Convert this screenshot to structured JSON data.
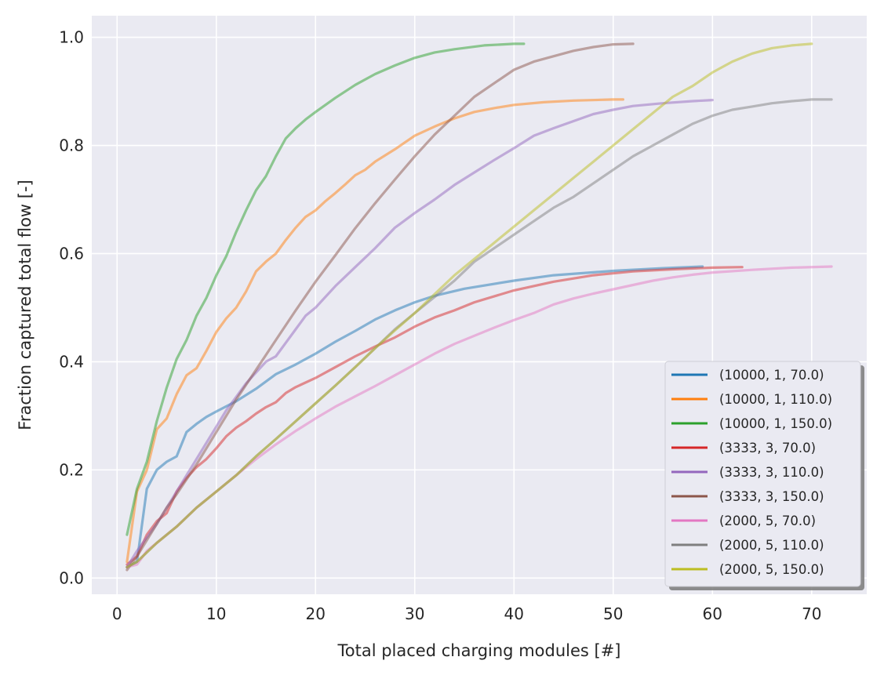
{
  "chart_data": {
    "type": "line",
    "title": "",
    "xlabel": "Total placed charging modules [#]",
    "ylabel": "Fraction captured total flow [-]",
    "xlim": [
      -2.55,
      75.55
    ],
    "ylim": [
      -0.03,
      1.04
    ],
    "xticks": [
      0,
      10,
      20,
      30,
      40,
      50,
      60,
      70
    ],
    "yticks": [
      0.0,
      0.2,
      0.4,
      0.6,
      0.8,
      1.0
    ],
    "grid": true,
    "legend_position": "lower-right",
    "series": [
      {
        "name": "(10000, 1, 70.0)",
        "color": "#1f77b4",
        "x": [
          1,
          2,
          3,
          4,
          5,
          6,
          7,
          8,
          9,
          10,
          12,
          14,
          16,
          18,
          20,
          22,
          24,
          26,
          28,
          30,
          32,
          35,
          40,
          44,
          50,
          55,
          59
        ],
        "y": [
          0.02,
          0.03,
          0.165,
          0.2,
          0.215,
          0.225,
          0.27,
          0.285,
          0.298,
          0.308,
          0.327,
          0.35,
          0.377,
          0.395,
          0.415,
          0.437,
          0.457,
          0.478,
          0.495,
          0.51,
          0.522,
          0.535,
          0.55,
          0.56,
          0.568,
          0.573,
          0.576
        ]
      },
      {
        "name": "(10000, 1, 110.0)",
        "color": "#ff7f0e",
        "x": [
          1,
          2,
          3,
          4,
          5,
          6,
          7,
          8,
          9,
          10,
          11,
          12,
          13,
          14,
          15,
          16,
          17,
          18,
          19,
          20,
          21,
          22,
          23,
          24,
          25,
          26,
          28,
          30,
          32,
          34,
          36,
          38,
          40,
          43,
          46,
          50,
          51
        ],
        "y": [
          0.03,
          0.16,
          0.2,
          0.275,
          0.295,
          0.34,
          0.375,
          0.388,
          0.42,
          0.455,
          0.48,
          0.5,
          0.53,
          0.567,
          0.585,
          0.6,
          0.625,
          0.648,
          0.668,
          0.68,
          0.697,
          0.712,
          0.728,
          0.745,
          0.755,
          0.77,
          0.793,
          0.818,
          0.835,
          0.85,
          0.862,
          0.869,
          0.875,
          0.88,
          0.883,
          0.885,
          0.885
        ]
      },
      {
        "name": "(10000, 1, 150.0)",
        "color": "#2ca02c",
        "x": [
          1,
          2,
          3,
          4,
          5,
          6,
          7,
          8,
          9,
          10,
          11,
          12,
          13,
          14,
          15,
          16,
          17,
          18,
          19,
          20,
          22,
          24,
          26,
          28,
          30,
          32,
          34,
          37,
          40,
          41
        ],
        "y": [
          0.08,
          0.165,
          0.215,
          0.29,
          0.352,
          0.405,
          0.44,
          0.485,
          0.518,
          0.56,
          0.595,
          0.64,
          0.68,
          0.717,
          0.743,
          0.78,
          0.813,
          0.832,
          0.848,
          0.862,
          0.888,
          0.912,
          0.932,
          0.948,
          0.962,
          0.972,
          0.978,
          0.985,
          0.988,
          0.988
        ]
      },
      {
        "name": "(3333, 3, 70.0)",
        "color": "#d62728",
        "x": [
          1,
          2,
          3,
          4,
          5,
          6,
          7,
          8,
          9,
          10,
          11,
          12,
          13,
          14,
          15,
          16,
          17,
          18,
          20,
          22,
          24,
          26,
          28,
          30,
          32,
          34,
          36,
          40,
          44,
          48,
          52,
          56,
          60,
          63
        ],
        "y": [
          0.025,
          0.04,
          0.08,
          0.105,
          0.12,
          0.16,
          0.185,
          0.205,
          0.22,
          0.24,
          0.262,
          0.278,
          0.29,
          0.304,
          0.316,
          0.325,
          0.342,
          0.353,
          0.37,
          0.39,
          0.41,
          0.428,
          0.445,
          0.465,
          0.482,
          0.495,
          0.51,
          0.532,
          0.548,
          0.56,
          0.567,
          0.571,
          0.574,
          0.575
        ]
      },
      {
        "name": "(3333, 3, 110.0)",
        "color": "#9467bd",
        "x": [
          1,
          2,
          3,
          4,
          5,
          6,
          7,
          8,
          9,
          10,
          11,
          12,
          13,
          14,
          15,
          16,
          17,
          18,
          19,
          20,
          22,
          24,
          26,
          28,
          30,
          32,
          34,
          36,
          38,
          40,
          42,
          44,
          46,
          48,
          50,
          52,
          55,
          58,
          60
        ],
        "y": [
          0.02,
          0.05,
          0.075,
          0.1,
          0.13,
          0.16,
          0.19,
          0.22,
          0.25,
          0.28,
          0.31,
          0.335,
          0.36,
          0.38,
          0.4,
          0.41,
          0.435,
          0.46,
          0.485,
          0.5,
          0.54,
          0.575,
          0.61,
          0.648,
          0.675,
          0.7,
          0.727,
          0.75,
          0.773,
          0.795,
          0.818,
          0.832,
          0.845,
          0.858,
          0.866,
          0.873,
          0.878,
          0.882,
          0.884
        ]
      },
      {
        "name": "(3333, 3, 150.0)",
        "color": "#8c564b",
        "x": [
          1,
          2,
          3,
          4,
          5,
          6,
          8,
          10,
          12,
          14,
          16,
          18,
          20,
          22,
          24,
          26,
          28,
          30,
          32,
          34,
          36,
          38,
          40,
          42,
          44,
          46,
          48,
          50,
          52
        ],
        "y": [
          0.015,
          0.04,
          0.07,
          0.1,
          0.13,
          0.155,
          0.21,
          0.27,
          0.33,
          0.385,
          0.44,
          0.495,
          0.548,
          0.597,
          0.647,
          0.693,
          0.737,
          0.78,
          0.82,
          0.855,
          0.89,
          0.915,
          0.94,
          0.955,
          0.965,
          0.975,
          0.982,
          0.987,
          0.988
        ]
      },
      {
        "name": "(2000, 5, 70.0)",
        "color": "#e377c2",
        "x": [
          1,
          2,
          3,
          4,
          5,
          6,
          8,
          10,
          12,
          14,
          16,
          18,
          20,
          22,
          24,
          26,
          28,
          30,
          32,
          34,
          36,
          38,
          40,
          42,
          44,
          46,
          48,
          50,
          52,
          54,
          56,
          58,
          60,
          64,
          68,
          72
        ],
        "y": [
          0.02,
          0.025,
          0.05,
          0.065,
          0.08,
          0.095,
          0.13,
          0.16,
          0.19,
          0.22,
          0.247,
          0.272,
          0.295,
          0.317,
          0.336,
          0.355,
          0.375,
          0.395,
          0.415,
          0.433,
          0.448,
          0.463,
          0.477,
          0.49,
          0.506,
          0.517,
          0.526,
          0.534,
          0.542,
          0.55,
          0.556,
          0.561,
          0.565,
          0.57,
          0.574,
          0.576
        ]
      },
      {
        "name": "(2000, 5, 110.0)",
        "color": "#7f7f7f",
        "x": [
          1,
          2,
          4,
          6,
          8,
          10,
          12,
          14,
          16,
          18,
          20,
          22,
          24,
          26,
          28,
          30,
          32,
          34,
          36,
          38,
          40,
          42,
          44,
          46,
          48,
          50,
          52,
          54,
          56,
          58,
          60,
          62,
          64,
          66,
          68,
          70,
          72
        ],
        "y": [
          0.02,
          0.03,
          0.065,
          0.095,
          0.13,
          0.16,
          0.19,
          0.225,
          0.257,
          0.29,
          0.323,
          0.356,
          0.39,
          0.425,
          0.46,
          0.49,
          0.52,
          0.55,
          0.585,
          0.61,
          0.635,
          0.66,
          0.685,
          0.705,
          0.73,
          0.755,
          0.78,
          0.8,
          0.82,
          0.84,
          0.855,
          0.866,
          0.872,
          0.878,
          0.882,
          0.885,
          0.885
        ]
      },
      {
        "name": "(2000, 5, 150.0)",
        "color": "#bcbd22",
        "x": [
          1,
          2,
          4,
          6,
          8,
          10,
          12,
          14,
          16,
          18,
          20,
          22,
          24,
          26,
          28,
          30,
          32,
          34,
          36,
          38,
          40,
          42,
          44,
          46,
          48,
          50,
          52,
          54,
          56,
          58,
          60,
          62,
          64,
          66,
          68,
          70
        ],
        "y": [
          0.02,
          0.03,
          0.065,
          0.095,
          0.13,
          0.16,
          0.19,
          0.225,
          0.257,
          0.29,
          0.323,
          0.356,
          0.39,
          0.425,
          0.458,
          0.49,
          0.525,
          0.56,
          0.59,
          0.62,
          0.65,
          0.68,
          0.71,
          0.74,
          0.77,
          0.8,
          0.83,
          0.86,
          0.89,
          0.91,
          0.935,
          0.955,
          0.97,
          0.98,
          0.985,
          0.988
        ]
      }
    ]
  }
}
